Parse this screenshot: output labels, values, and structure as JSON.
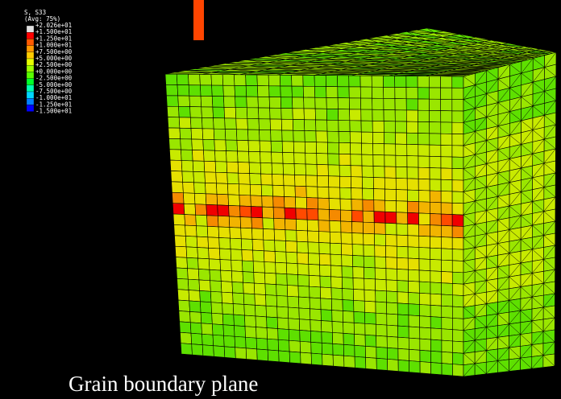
{
  "legend": {
    "title": "S, S33",
    "subtitle": "(Avg: 75%)",
    "labels": [
      "+2.026e+01",
      "+1.500e+01",
      "+1.250e+01",
      "+1.000e+01",
      "+7.500e+00",
      "+5.000e+00",
      "+2.500e+00",
      "+0.000e+00",
      "-2.500e+00",
      "-5.000e+00",
      "-7.500e+00",
      "-1.000e+01",
      "-1.250e+01",
      "-1.500e+01"
    ],
    "colors": [
      "#e0e0e0",
      "#ff0000",
      "#ff5a00",
      "#ff9900",
      "#ffcc00",
      "#e6ff00",
      "#a0ff00",
      "#5aff00",
      "#00ff2a",
      "#00ffb0",
      "#00d8ff",
      "#0080ff",
      "#0000ff"
    ]
  },
  "caption": "Grain boundary plane"
}
